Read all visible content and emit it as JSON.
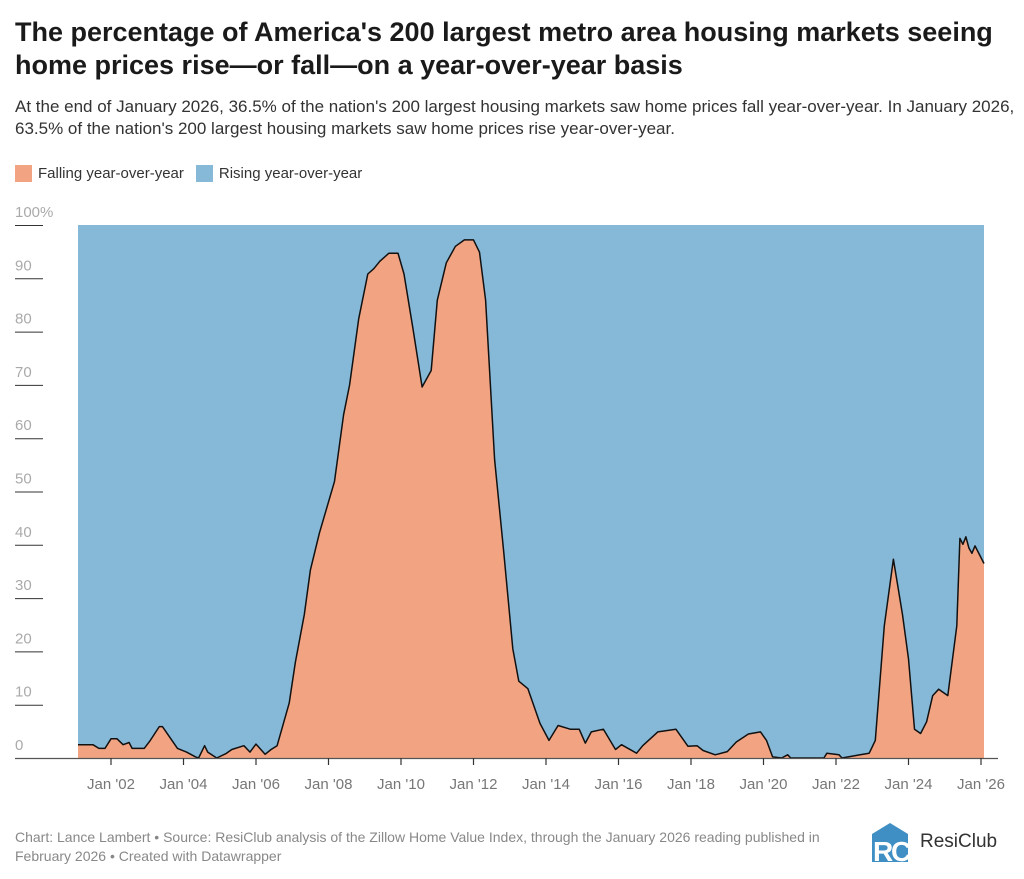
{
  "title": "The percentage of America's 200 largest metro area housing markets seeing home prices rise—or fall—on a year-over-year basis",
  "subtitle": "At the end of January 2026, 36.5% of the nation's 200 largest housing markets saw home prices fall year-over-year. In January 2026, 63.5% of the nation's 200 largest housing markets saw home prices rise year-over-year.",
  "legend": [
    {
      "label": "Falling year-over-year",
      "color": "#f2a482"
    },
    {
      "label": "Rising year-over-year",
      "color": "#86b8d8"
    }
  ],
  "footer": "Chart: Lance Lambert • Source: ResiClub analysis of the Zillow Home Value Index, through the January 2026 reading published in February 2026 • Created with Datawrapper",
  "logo": {
    "text": "ResiClub",
    "mark": "RC",
    "color": "#3f8fc4"
  },
  "chart_data": {
    "type": "area",
    "stacked": true,
    "ylim": [
      0,
      100
    ],
    "y_ticks": [
      "100%",
      "90",
      "80",
      "70",
      "60",
      "50",
      "40",
      "30",
      "20",
      "10",
      "0"
    ],
    "x_ticks": [
      "Jan '02",
      "Jan '04",
      "Jan '06",
      "Jan '08",
      "Jan '10",
      "Jan '12",
      "Jan '14",
      "Jan '16",
      "Jan '18",
      "Jan '20",
      "Jan '22",
      "Jan '24",
      "Jan '26"
    ],
    "x_tick_dates": [
      "2002-01",
      "2004-01",
      "2006-01",
      "2008-01",
      "2010-01",
      "2012-01",
      "2014-01",
      "2016-01",
      "2018-01",
      "2020-01",
      "2022-01",
      "2024-01",
      "2026-01"
    ],
    "grid": false,
    "legend_position": "top-left",
    "series": [
      {
        "name": "Falling year-over-year",
        "color": "#f2a482",
        "note_rising_is_remainder": true,
        "points": [
          [
            "2001-02",
            2.5
          ],
          [
            "2001-07",
            2.5
          ],
          [
            "2001-09",
            1.8
          ],
          [
            "2001-11",
            1.8
          ],
          [
            "2002-01",
            3.6
          ],
          [
            "2002-03",
            3.6
          ],
          [
            "2002-05",
            2.5
          ],
          [
            "2002-07",
            2.9
          ],
          [
            "2002-08",
            1.8
          ],
          [
            "2002-12",
            1.8
          ],
          [
            "2003-02",
            3.3
          ],
          [
            "2003-05",
            5.9
          ],
          [
            "2003-06",
            5.9
          ],
          [
            "2003-11",
            1.8
          ],
          [
            "2004-02",
            1.1
          ],
          [
            "2004-05",
            0.2
          ],
          [
            "2004-06",
            0
          ],
          [
            "2004-08",
            2.3
          ],
          [
            "2004-09",
            1.1
          ],
          [
            "2004-12",
            0
          ],
          [
            "2005-03",
            0.8
          ],
          [
            "2005-05",
            1.6
          ],
          [
            "2005-09",
            2.3
          ],
          [
            "2005-11",
            1.1
          ],
          [
            "2006-01",
            2.6
          ],
          [
            "2006-04",
            0.7
          ],
          [
            "2006-06",
            1.6
          ],
          [
            "2006-08",
            2.3
          ],
          [
            "2006-12",
            10.3
          ],
          [
            "2007-02",
            17.9
          ],
          [
            "2007-05",
            26.9
          ],
          [
            "2007-07",
            35.3
          ],
          [
            "2007-10",
            42.2
          ],
          [
            "2008-03",
            51.9
          ],
          [
            "2008-06",
            64.4
          ],
          [
            "2008-08",
            70
          ],
          [
            "2008-11",
            82.4
          ],
          [
            "2009-02",
            90.8
          ],
          [
            "2009-04",
            91.8
          ],
          [
            "2009-06",
            93.2
          ],
          [
            "2009-09",
            94.7
          ],
          [
            "2009-12",
            94.7
          ],
          [
            "2010-02",
            90.8
          ],
          [
            "2010-05",
            80.4
          ],
          [
            "2010-08",
            69.6
          ],
          [
            "2010-11",
            72.7
          ],
          [
            "2011-01",
            85.9
          ],
          [
            "2011-04",
            92.9
          ],
          [
            "2011-07",
            96
          ],
          [
            "2011-10",
            97.2
          ],
          [
            "2012-01",
            97.2
          ],
          [
            "2012-03",
            94.9
          ],
          [
            "2012-05",
            85.9
          ],
          [
            "2012-08",
            56
          ],
          [
            "2012-11",
            38.7
          ],
          [
            "2013-02",
            20.5
          ],
          [
            "2013-04",
            14.4
          ],
          [
            "2013-07",
            13
          ],
          [
            "2013-11",
            6.5
          ],
          [
            "2014-02",
            3.3
          ],
          [
            "2014-05",
            6.1
          ],
          [
            "2014-09",
            5.4
          ],
          [
            "2014-12",
            5.4
          ],
          [
            "2015-02",
            2.8
          ],
          [
            "2015-04",
            4.9
          ],
          [
            "2015-08",
            5.4
          ],
          [
            "2015-12",
            1.6
          ],
          [
            "2016-02",
            2.5
          ],
          [
            "2016-07",
            0.9
          ],
          [
            "2016-09",
            2.3
          ],
          [
            "2017-02",
            4.9
          ],
          [
            "2017-08",
            5.4
          ],
          [
            "2017-12",
            2.2
          ],
          [
            "2018-03",
            2.3
          ],
          [
            "2018-05",
            1.4
          ],
          [
            "2018-09",
            0.6
          ],
          [
            "2019-01",
            1.2
          ],
          [
            "2019-04",
            3.0
          ],
          [
            "2019-08",
            4.5
          ],
          [
            "2019-12",
            4.9
          ],
          [
            "2020-02",
            3.3
          ],
          [
            "2020-04",
            0.2
          ],
          [
            "2020-07",
            0
          ],
          [
            "2020-09",
            0.6
          ],
          [
            "2020-10",
            0
          ],
          [
            "2021-09",
            0
          ],
          [
            "2021-10",
            0.9
          ],
          [
            "2022-02",
            0.6
          ],
          [
            "2022-03",
            0
          ],
          [
            "2022-09",
            0.6
          ],
          [
            "2022-12",
            0.9
          ],
          [
            "2023-02",
            3.3
          ],
          [
            "2023-05",
            24.8
          ],
          [
            "2023-08",
            37.3
          ],
          [
            "2023-11",
            26.9
          ],
          [
            "2024-01",
            18.6
          ],
          [
            "2024-03",
            5.4
          ],
          [
            "2024-05",
            4.6
          ],
          [
            "2024-07",
            6.8
          ],
          [
            "2024-09",
            11.7
          ],
          [
            "2024-11",
            12.9
          ],
          [
            "2025-02",
            11.7
          ],
          [
            "2025-05",
            24.8
          ],
          [
            "2025-06",
            41.2
          ],
          [
            "2025-07",
            40.1
          ],
          [
            "2025-08",
            41.5
          ],
          [
            "2025-09",
            39.4
          ],
          [
            "2025-10",
            38.4
          ],
          [
            "2025-11",
            39.8
          ],
          [
            "2026-01",
            36.5
          ]
        ]
      },
      {
        "name": "Rising year-over-year",
        "color": "#86b8d8"
      }
    ]
  }
}
